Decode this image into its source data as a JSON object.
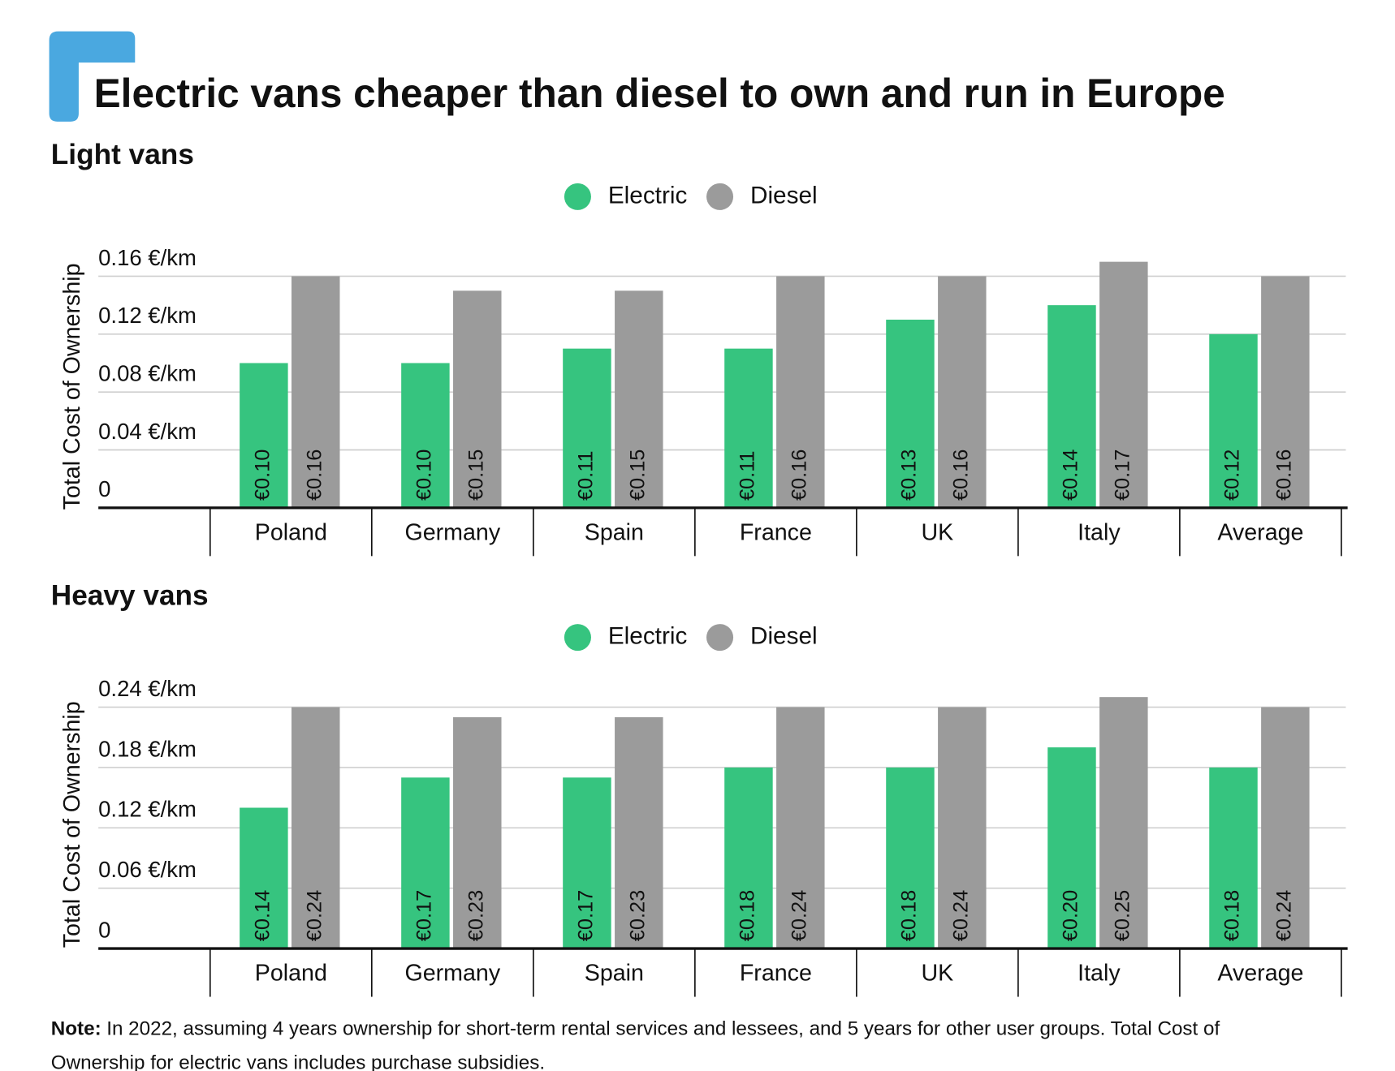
{
  "title": "Electric vans cheaper than diesel to own and run in Europe",
  "note": {
    "label": "Note:",
    "text": "In 2022, assuming 4 years ownership for short-term rental services and lessees, and 5 years for other user groups. Total Cost of",
    "text2": "Ownership for electric vans includes purchase subsidies."
  },
  "chart_data": [
    {
      "type": "bar",
      "subtitle": "Light vans",
      "ylabel": "Total Cost of Ownership",
      "categories": [
        "Poland",
        "Germany",
        "Spain",
        "France",
        "UK",
        "Italy",
        "Average"
      ],
      "series": [
        {
          "name": "Electric",
          "color": "#36c47f",
          "values": [
            0.1,
            0.1,
            0.11,
            0.11,
            0.13,
            0.14,
            0.12
          ],
          "value_labels": [
            "€0.10",
            "€0.10",
            "€0.11",
            "€0.11",
            "€0.13",
            "€0.14",
            "€0.12"
          ]
        },
        {
          "name": "Diesel",
          "color": "#9b9b9b",
          "values": [
            0.16,
            0.15,
            0.15,
            0.16,
            0.16,
            0.17,
            0.16
          ],
          "value_labels": [
            "€0.16",
            "€0.15",
            "€0.15",
            "€0.16",
            "€0.16",
            "€0.17",
            "€0.16"
          ]
        }
      ],
      "ylim": [
        0,
        0.17
      ],
      "yticks": [
        0,
        {
          "value": 0.04,
          "label": "0.04 €/km"
        },
        {
          "value": 0.08,
          "label": "0.08 €/km"
        },
        {
          "value": 0.12,
          "label": "0.12 €/km"
        },
        {
          "value": 0.16,
          "label": "0.16 €/km"
        }
      ],
      "grid": true,
      "legend": "top"
    },
    {
      "type": "bar",
      "subtitle": "Heavy vans",
      "ylabel": "Total Cost of Ownership",
      "categories": [
        "Poland",
        "Germany",
        "Spain",
        "France",
        "UK",
        "Italy",
        "Average"
      ],
      "series": [
        {
          "name": "Electric",
          "color": "#36c47f",
          "values": [
            0.14,
            0.17,
            0.17,
            0.18,
            0.18,
            0.2,
            0.18
          ],
          "value_labels": [
            "€0.14",
            "€0.17",
            "€0.17",
            "€0.18",
            "€0.18",
            "€0.20",
            "€0.18"
          ]
        },
        {
          "name": "Diesel",
          "color": "#9b9b9b",
          "values": [
            0.24,
            0.23,
            0.23,
            0.24,
            0.24,
            0.25,
            0.24
          ],
          "value_labels": [
            "€0.24",
            "€0.23",
            "€0.23",
            "€0.24",
            "€0.24",
            "€0.25",
            "€0.24"
          ]
        }
      ],
      "ylim": [
        0,
        0.25
      ],
      "yticks": [
        0,
        {
          "value": 0.06,
          "label": "0.06 €/km"
        },
        {
          "value": 0.12,
          "label": "0.12 €/km"
        },
        {
          "value": 0.18,
          "label": "0.18 €/km"
        },
        {
          "value": 0.24,
          "label": "0.24 €/km"
        }
      ],
      "grid": true,
      "legend": "top"
    }
  ]
}
